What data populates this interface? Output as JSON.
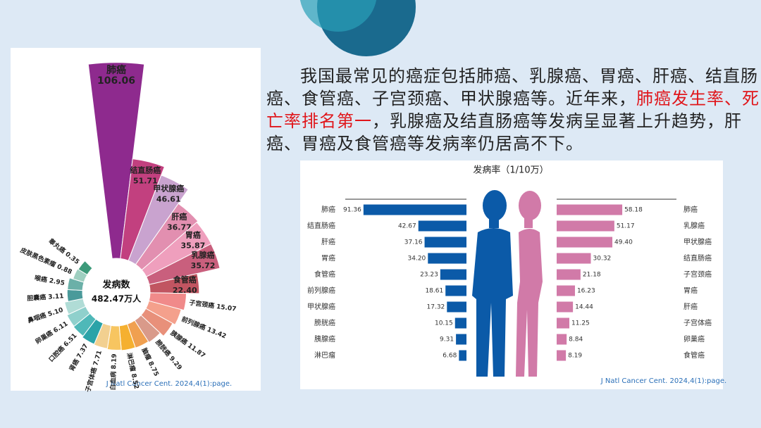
{
  "paragraph": [
    "我国最常见的癌症包括肺癌、乳腺癌、胃癌、肝癌、结直肠癌、食管癌、子宫颈癌、甲状腺癌等。近年来，",
    "肺癌发生率、死亡率排名第一",
    "，乳腺癌及结直肠癌等发病呈显著上升趋势，肝癌、胃癌及食管癌等发病率仍居高不下。"
  ],
  "chart_data": [
    {
      "type": "radial_bar",
      "center_label": "发病数",
      "center_value": "482.47万人",
      "source": "J Natl Cancer Cent. 2024,4(1):page.",
      "categories": [
        "肺癌",
        "结直肠癌",
        "甲状腺癌",
        "肝癌",
        "胃癌",
        "乳腺癌",
        "食管癌",
        "子宫颈癌",
        "前列腺癌",
        "胰腺癌",
        "膀胱癌",
        "脑瘤",
        "淋巴瘤",
        "白血病",
        "子宫体癌",
        "肾癌",
        "口腔癌",
        "卵巢癌",
        "鼻咽癌",
        "胆囊癌",
        "喉癌",
        "皮肤黑色素瘤",
        "睾丸癌"
      ],
      "values": [
        106.06,
        51.71,
        46.61,
        36.77,
        35.87,
        35.72,
        22.4,
        15.07,
        13.42,
        11.87,
        9.29,
        8.75,
        8.52,
        8.19,
        7.71,
        7.37,
        6.51,
        6.11,
        5.1,
        3.11,
        2.95,
        0.88,
        0.35
      ],
      "value_labels": [
        "106.06",
        "51.71",
        "46.61",
        "36.77",
        "35.87",
        "35.72",
        "22.40",
        "15.07",
        "13.42",
        "11.87",
        "9.29",
        "8.75",
        "8.52",
        "8.19",
        "7.71",
        "7.37",
        "6.51",
        "6.11",
        "5.10",
        "3.11",
        "2.95",
        "0.88",
        "0.35"
      ],
      "colors": [
        "#8e2a8e",
        "#c2407f",
        "#c9a3cf",
        "#e28fb0",
        "#ef9fbd",
        "#c95f7d",
        "#c15561",
        "#f08a8a",
        "#f4a08c",
        "#e8907a",
        "#d99a8a",
        "#f0a050",
        "#f5b030",
        "#f7c560",
        "#f2d090",
        "#2aa3a8",
        "#4fb8b8",
        "#8fd0cc",
        "#b0dcd6",
        "#4a9a9a",
        "#6bb0a8",
        "#9ecfc0",
        "#3c9a7a"
      ],
      "rlim": [
        0,
        110
      ]
    },
    {
      "type": "butterfly_bar",
      "title": "发病率（1/10万）",
      "source": "J Natl Cancer Cent. 2024,4(1):page.",
      "xlim": [
        0,
        100
      ],
      "series": [
        {
          "color": "#0b5aa8",
          "categories": [
            "肺癌",
            "结直肠癌",
            "肝癌",
            "胃癌",
            "食管癌",
            "前列腺癌",
            "甲状腺癌",
            "膀胱癌",
            "胰腺癌",
            "淋巴瘤"
          ],
          "values": [
            91.36,
            42.67,
            37.16,
            34.2,
            23.23,
            18.61,
            17.32,
            10.15,
            9.31,
            6.68
          ],
          "value_labels": [
            "91.36",
            "42.67",
            "37.16",
            "34.20",
            "23.23",
            "18.61",
            "17.32",
            "10.15",
            "9.31",
            "6.68"
          ]
        },
        {
          "color": "#d17aa8",
          "categories": [
            "肺癌",
            "乳腺癌",
            "甲状腺癌",
            "结直肠癌",
            "子宫颈癌",
            "胃癌",
            "肝癌",
            "子宫体癌",
            "卵巢癌",
            "食管癌"
          ],
          "values": [
            58.18,
            51.17,
            49.4,
            30.32,
            21.18,
            16.23,
            14.44,
            11.25,
            8.84,
            8.19
          ],
          "value_labels": [
            "58.18",
            "51.17",
            "49.40",
            "30.32",
            "21.18",
            "16.23",
            "14.44",
            "11.25",
            "8.84",
            "8.19"
          ]
        }
      ]
    }
  ]
}
